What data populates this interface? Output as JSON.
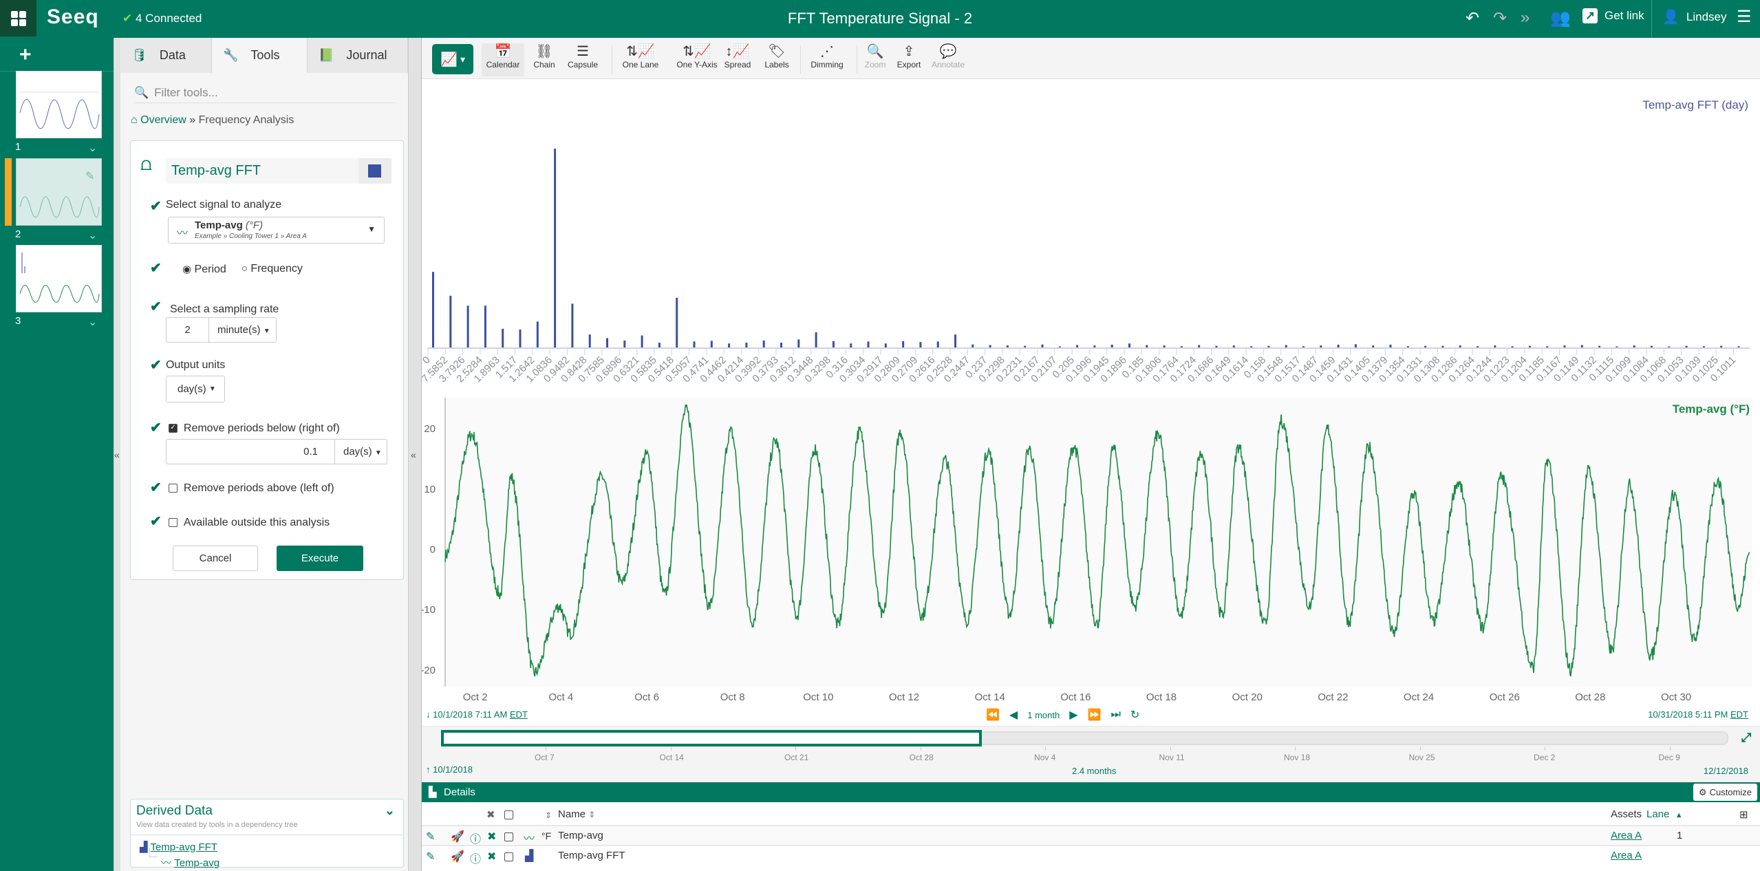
{
  "header": {
    "logo": "Seeq",
    "connection_status": "4 Connected",
    "title": "FFT Temperature Signal - 2",
    "get_link": "Get link",
    "user": "Lindsey",
    "icons": [
      "undo-icon",
      "redo-icon",
      "redo-all-icon",
      "users-icon",
      "external-link-icon",
      "user-icon",
      "hamburger-menu-icon"
    ]
  },
  "worksheets": [
    {
      "number": "1",
      "active": false
    },
    {
      "number": "2",
      "active": true
    },
    {
      "number": "3",
      "active": false
    }
  ],
  "panel": {
    "tabs": [
      "Data",
      "Tools",
      "Journal"
    ],
    "active_tab": "Tools",
    "filter_placeholder": "Filter tools...",
    "breadcrumb": {
      "home": "Overview",
      "sep": "»",
      "current": "Frequency Analysis"
    },
    "tool": {
      "name": "Temp-avg FFT",
      "color": "#3a50a0",
      "select_signal_label": "Select signal to analyze",
      "signal_name": "Temp-avg",
      "signal_unit": "(°F)",
      "signal_path": "Example » Cooling Tower 1 » Area A",
      "mode_options": [
        "Period",
        "Frequency"
      ],
      "mode_selected": "Period",
      "sampling_label": "Select a sampling rate",
      "sampling_value": "2",
      "sampling_unit": "minute(s)",
      "output_units_label": "Output units",
      "output_units": "day(s)",
      "remove_below_label": "Remove periods below (right of)",
      "remove_below_checked": true,
      "remove_below_value": "0.1",
      "remove_below_unit": "day(s)",
      "remove_above_label": "Remove periods above (left of)",
      "remove_above_checked": false,
      "available_outside_label": "Available outside this analysis",
      "available_outside_checked": false,
      "cancel": "Cancel",
      "execute": "Execute"
    },
    "derived": {
      "title": "Derived Data",
      "subtitle": "View data created by tools in a dependency tree",
      "items": [
        "Temp-avg FFT",
        "Temp-avg"
      ]
    }
  },
  "toolbar": {
    "buttons": [
      "Calendar",
      "Chain",
      "Capsule",
      "One Lane",
      "One Y-Axis",
      "Spread",
      "Labels",
      "Dimming",
      "Zoom",
      "Export",
      "Annotate"
    ],
    "disabled": [
      "Zoom",
      "Annotate"
    ],
    "active": "Calendar"
  },
  "chart_data": [
    {
      "type": "bar",
      "title": "Temp-avg FFT (day)",
      "color": "#3a50a0",
      "grid": false,
      "categories": [
        "0",
        "7.5852",
        "3.7926",
        "2.5284",
        "1.8963",
        "1.517",
        "1.2642",
        "1.0836",
        "0.9482",
        "0.8428",
        "0.7585",
        "0.6896",
        "0.6321",
        "0.5835",
        "0.5418",
        "0.5057",
        "0.4741",
        "0.4462",
        "0.4214",
        "0.3992",
        "0.3793",
        "0.3612",
        "0.3448",
        "0.3298",
        "0.316",
        "0.3034",
        "0.2917",
        "0.2809",
        "0.2709",
        "0.2616",
        "0.2528",
        "0.2447",
        "0.237",
        "0.2298",
        "0.2231",
        "0.2167",
        "0.2107",
        "0.205",
        "0.1996",
        "0.1945",
        "0.1896",
        "0.185",
        "0.1806",
        "0.1764",
        "0.1724",
        "0.1686",
        "0.1649",
        "0.1614",
        "0.158",
        "0.1548",
        "0.1517",
        "0.1487",
        "0.1459",
        "0.1431",
        "0.1405",
        "0.1379",
        "0.1354",
        "0.1331",
        "0.1308",
        "0.1286",
        "0.1264",
        "0.1244",
        "0.1223",
        "0.1204",
        "0.1185",
        "0.1167",
        "0.1149",
        "0.1132",
        "0.1115",
        "0.1099",
        "0.1084",
        "0.1068",
        "0.1053",
        "0.1039",
        "0.1025",
        "0.1011"
      ],
      "values": [
        38,
        26,
        21,
        21,
        9.4,
        9,
        13,
        100,
        22,
        6.5,
        4.7,
        3.5,
        6,
        2.4,
        25,
        3,
        3.3,
        2,
        2.4,
        3.5,
        2.4,
        4,
        7.6,
        3.2,
        2,
        3,
        2,
        3.2,
        2.7,
        3,
        6.5,
        1.5,
        1.2,
        1,
        0.8,
        1.5,
        0.5,
        1.2,
        1,
        1.4,
        2,
        1.2,
        1,
        0.6,
        1.2,
        0.8,
        1,
        0.6,
        0.8,
        1.2,
        0.6,
        1,
        1.4,
        1.6,
        1,
        1.4,
        0.6,
        0.8,
        0.8,
        1,
        0.6,
        1,
        0.6,
        0.8,
        0.6,
        1,
        1.2,
        0.8,
        0.5,
        1,
        0.8,
        0.5,
        0.8,
        0.6,
        0.8,
        0.6
      ]
    },
    {
      "type": "line",
      "series_name": "Temp-avg (°F)",
      "color": "#1b8a45",
      "xlim": [
        "2018-10-01T07:11",
        "2018-10-31T17:11"
      ],
      "ylim": [
        -22,
        24
      ],
      "yticks": [
        20,
        10,
        0,
        -10,
        -20
      ],
      "xtick_labels": [
        "Oct 2",
        "Oct 4",
        "Oct 6",
        "Oct 8",
        "Oct 10",
        "Oct 12",
        "Oct 14",
        "Oct 16",
        "Oct 18",
        "Oct 20",
        "Oct 22",
        "Oct 24",
        "Oct 26",
        "Oct 28",
        "Oct 30"
      ],
      "points": [
        [
          "2018-10-01T07:11",
          -1
        ],
        [
          "2018-10-01T22:00",
          19
        ],
        [
          "2018-10-02T14:00",
          -7.5
        ],
        [
          "2018-10-02T20:00",
          12
        ],
        [
          "2018-10-03T09:00",
          -20.5
        ],
        [
          "2018-10-03T23:00",
          -9.4
        ],
        [
          "2018-10-04T05:00",
          -14
        ],
        [
          "2018-10-04T23:00",
          12
        ],
        [
          "2018-10-05T10:00",
          -5.6
        ],
        [
          "2018-10-06T00:00",
          15.7
        ],
        [
          "2018-10-06T10:00",
          -7.5
        ],
        [
          "2018-10-06T22:00",
          23
        ],
        [
          "2018-10-07T11:00",
          -9.4
        ],
        [
          "2018-10-07T23:00",
          19.5
        ],
        [
          "2018-10-08T11:00",
          -12
        ],
        [
          "2018-10-09T00:00",
          18
        ],
        [
          "2018-10-09T12:00",
          -11
        ],
        [
          "2018-10-09T22:00",
          16.7
        ],
        [
          "2018-10-10T11:00",
          -12.5
        ],
        [
          "2018-10-10T23:00",
          19.5
        ],
        [
          "2018-10-11T12:00",
          -11
        ],
        [
          "2018-10-11T22:00",
          19.5
        ],
        [
          "2018-10-12T10:00",
          -11
        ],
        [
          "2018-10-12T23:00",
          14.8
        ],
        [
          "2018-10-13T11:00",
          -11.8
        ],
        [
          "2018-10-13T23:00",
          16.3
        ],
        [
          "2018-10-14T11:00",
          -10.7
        ],
        [
          "2018-10-14T22:00",
          16.7
        ],
        [
          "2018-10-15T10:00",
          -12
        ],
        [
          "2018-10-15T23:00",
          17
        ],
        [
          "2018-10-16T12:00",
          -12.4
        ],
        [
          "2018-10-16T21:00",
          16.7
        ],
        [
          "2018-10-17T09:00",
          -9.4
        ],
        [
          "2018-10-17T22:00",
          19
        ],
        [
          "2018-10-18T11:00",
          -11
        ],
        [
          "2018-10-18T22:00",
          15.7
        ],
        [
          "2018-10-19T10:00",
          -11
        ],
        [
          "2018-10-19T19:00",
          17
        ],
        [
          "2018-10-20T10:00",
          -12.5
        ],
        [
          "2018-10-20T19:00",
          21.3
        ],
        [
          "2018-10-21T11:00",
          -9.4
        ],
        [
          "2018-10-21T21:00",
          20
        ],
        [
          "2018-10-22T09:00",
          -12
        ],
        [
          "2018-10-22T20:00",
          17
        ],
        [
          "2018-10-23T10:00",
          -14
        ],
        [
          "2018-10-23T21:00",
          9.2
        ],
        [
          "2018-10-24T08:00",
          -12
        ],
        [
          "2018-10-24T22:00",
          11
        ],
        [
          "2018-10-25T12:00",
          -13
        ],
        [
          "2018-10-25T22:00",
          12
        ],
        [
          "2018-10-26T16:00",
          -19.6
        ],
        [
          "2018-10-27T00:00",
          14.8
        ],
        [
          "2018-10-27T13:00",
          -20
        ],
        [
          "2018-10-27T23:00",
          13
        ],
        [
          "2018-10-28T12:00",
          -16.8
        ],
        [
          "2018-10-28T22:00",
          10.7
        ],
        [
          "2018-10-29T10:00",
          -17.7
        ],
        [
          "2018-10-29T23:00",
          9.2
        ],
        [
          "2018-10-30T10:00",
          -15
        ],
        [
          "2018-10-30T23:00",
          11.5
        ],
        [
          "2018-10-31T11:00",
          -9.4
        ],
        [
          "2018-10-31T17:11",
          -0.5
        ]
      ]
    }
  ],
  "timebar": {
    "display_start": "10/1/2018 7:11 AM",
    "display_end": "10/31/2018 5:11 PM",
    "tz": "EDT",
    "duration": "1 month",
    "investigate_start": "10/1/2018",
    "investigate_end": "12/12/2018",
    "investigate_duration": "2.4 months",
    "slider_labels": [
      "Oct 7",
      "Oct 14",
      "Oct 21",
      "Oct 28",
      "Nov 4",
      "Nov 11",
      "Nov 18",
      "Nov 25",
      "Dec 2",
      "Dec 9"
    ],
    "selected_fraction": [
      0,
      0.42
    ]
  },
  "details": {
    "title": "Details",
    "customize": "Customize",
    "columns": {
      "name": "Name",
      "assets": "Assets",
      "lane": "Lane"
    },
    "rows": [
      {
        "unit": "°F",
        "name": "Temp-avg",
        "asset": "Area A",
        "lane": "1",
        "icon": "signal-icon"
      },
      {
        "unit": "",
        "name": "Temp-avg FFT",
        "asset": "Area A",
        "lane": "",
        "icon": "bar-chart-icon"
      }
    ]
  }
}
